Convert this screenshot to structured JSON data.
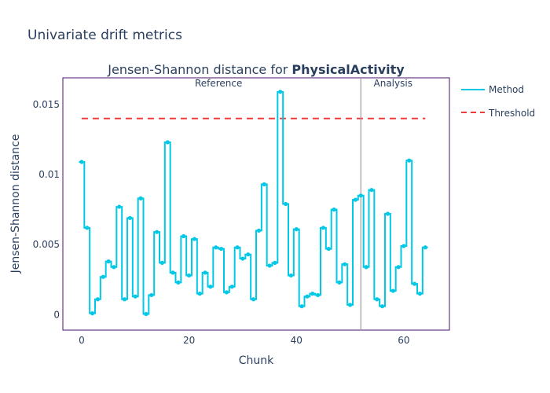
{
  "page_title": "Univariate drift metrics",
  "chart_data": {
    "type": "line",
    "title_prefix": "Jensen-Shannon distance for ",
    "title_feature": "PhysicalActivity",
    "xlabel": "Chunk",
    "ylabel": "Jensen-Shannon distance",
    "xlim": [
      -3.5,
      68.5
    ],
    "ylim": [
      -0.0011,
      0.0169
    ],
    "xticks": [
      0,
      20,
      40,
      60
    ],
    "yticks": [
      0,
      0.005,
      0.01,
      0.015
    ],
    "ytick_labels": [
      "0",
      "0.005",
      "0.01",
      "0.015"
    ],
    "xtick_labels": [
      "0",
      "20",
      "40",
      "60"
    ],
    "grid": false,
    "legend_position": "right",
    "colors": {
      "method": "#00c8e5",
      "threshold": "#ef3b3b",
      "divider": "#9e9e9e",
      "frame": "#4b0f6b"
    },
    "periods": [
      {
        "name": "Reference",
        "start": 0,
        "end": 51
      },
      {
        "name": "Analysis",
        "start": 52,
        "end": 64
      }
    ],
    "divider_x": 52,
    "threshold": {
      "name": "Threshold",
      "value": 0.014,
      "x_start": 0,
      "x_end": 64
    },
    "series": [
      {
        "name": "Method",
        "step": true,
        "x": [
          0,
          1,
          2,
          3,
          4,
          5,
          6,
          7,
          8,
          9,
          10,
          11,
          12,
          13,
          14,
          15,
          16,
          17,
          18,
          19,
          20,
          21,
          22,
          23,
          24,
          25,
          26,
          27,
          28,
          29,
          30,
          31,
          32,
          33,
          34,
          35,
          36,
          37,
          38,
          39,
          40,
          41,
          42,
          43,
          44,
          45,
          46,
          47,
          48,
          49,
          50,
          51,
          52,
          53,
          54,
          55,
          56,
          57,
          58,
          59,
          60,
          61,
          62,
          63,
          64
        ],
        "values": [
          0.0109,
          0.0062,
          0.0001,
          0.0011,
          0.0027,
          0.0038,
          0.0034,
          0.0077,
          0.0011,
          0.0069,
          0.0013,
          0.0083,
          5e-05,
          0.0014,
          0.0059,
          0.0037,
          0.0123,
          0.003,
          0.0023,
          0.0056,
          0.0028,
          0.0054,
          0.0015,
          0.003,
          0.002,
          0.0048,
          0.0047,
          0.0016,
          0.002,
          0.0048,
          0.004,
          0.0043,
          0.0011,
          0.006,
          0.0093,
          0.0035,
          0.0037,
          0.0159,
          0.0079,
          0.0028,
          0.0061,
          0.0006,
          0.0013,
          0.0015,
          0.0014,
          0.0062,
          0.0047,
          0.0075,
          0.0023,
          0.0036,
          0.0007,
          0.0082,
          0.0085,
          0.0034,
          0.0089,
          0.0011,
          0.0006,
          0.0072,
          0.0017,
          0.0034,
          0.0049,
          0.011,
          0.0022,
          0.0015,
          0.0048
        ]
      }
    ]
  }
}
